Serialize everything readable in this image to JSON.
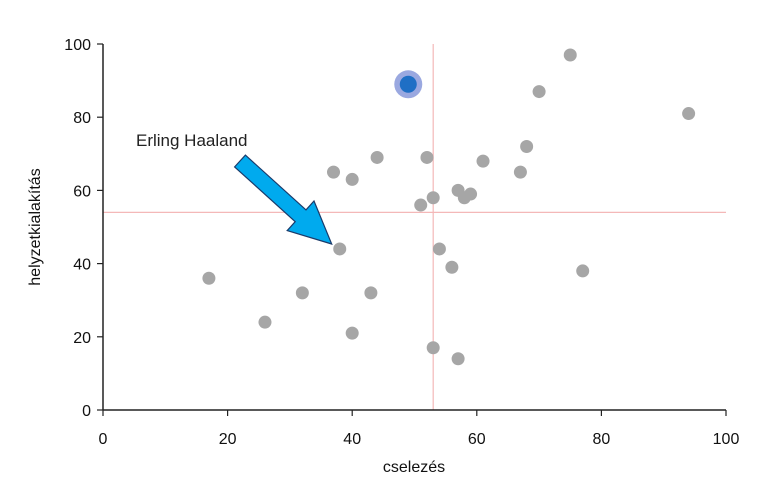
{
  "chart_data": {
    "type": "scatter",
    "xlabel": "cselezés",
    "ylabel": "helyzetkialakítás",
    "xlim": [
      0,
      100
    ],
    "ylim": [
      0,
      100
    ],
    "xticks": [
      0,
      20,
      40,
      60,
      80,
      100
    ],
    "yticks": [
      0,
      20,
      40,
      60,
      80,
      100
    ],
    "grid": false,
    "reference_lines": {
      "x": 53,
      "y": 54,
      "color": "#f4b8b8"
    },
    "point_color": "#a6a6a6",
    "points": [
      {
        "x": 17,
        "y": 36
      },
      {
        "x": 26,
        "y": 24
      },
      {
        "x": 32,
        "y": 32
      },
      {
        "x": 37,
        "y": 65
      },
      {
        "x": 38,
        "y": 44
      },
      {
        "x": 40,
        "y": 63
      },
      {
        "x": 40,
        "y": 21
      },
      {
        "x": 43,
        "y": 32
      },
      {
        "x": 44,
        "y": 69
      },
      {
        "x": 51,
        "y": 56
      },
      {
        "x": 52,
        "y": 69
      },
      {
        "x": 53,
        "y": 58
      },
      {
        "x": 53,
        "y": 17
      },
      {
        "x": 54,
        "y": 44
      },
      {
        "x": 56,
        "y": 39
      },
      {
        "x": 57,
        "y": 60
      },
      {
        "x": 57,
        "y": 14
      },
      {
        "x": 58,
        "y": 58
      },
      {
        "x": 59,
        "y": 59
      },
      {
        "x": 61,
        "y": 68
      },
      {
        "x": 67,
        "y": 65
      },
      {
        "x": 68,
        "y": 72
      },
      {
        "x": 70,
        "y": 87
      },
      {
        "x": 75,
        "y": 97
      },
      {
        "x": 77,
        "y": 38
      },
      {
        "x": 94,
        "y": 81
      }
    ],
    "highlight": {
      "x": 49,
      "y": 89,
      "color": "#1f6fc5",
      "halo_color": "#9aa8e0"
    },
    "annotation": {
      "text": "Erling Haaland",
      "target": {
        "x": 38,
        "y": 44
      },
      "arrow_color": "#00aaee"
    }
  }
}
